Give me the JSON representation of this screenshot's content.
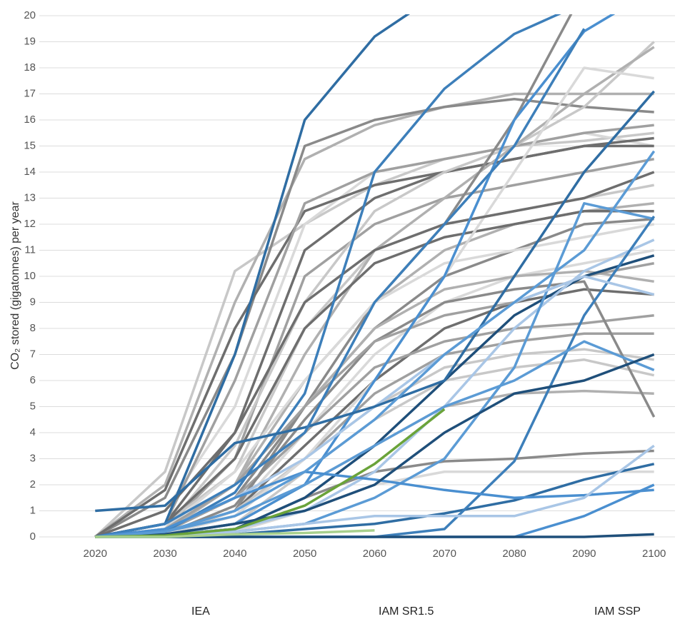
{
  "chart_data": {
    "type": "line",
    "y_label": "CO₂ stored (gigatonnes) per year",
    "x": [
      2020,
      2030,
      2040,
      2050,
      2060,
      2070,
      2080,
      2090,
      2100
    ],
    "xlim": [
      2012,
      2103
    ],
    "xticks": [
      2020,
      2030,
      2040,
      2050,
      2060,
      2070,
      2080,
      2090,
      2100
    ],
    "ylim": [
      0,
      20
    ],
    "yticks": [
      0,
      1,
      2,
      3,
      4,
      5,
      6,
      7,
      8,
      9,
      10,
      11,
      12,
      13,
      14,
      15,
      16,
      17,
      18,
      19,
      20
    ],
    "grid": true,
    "groups": [
      {
        "name": "IAM SR1.5",
        "colors": [
          "#c8c8c8",
          "#b0b0b0",
          "#8a8a8a",
          "#d9d9d9",
          "#6e6e6e",
          "#a0a0a0"
        ],
        "legend_colors": [
          "#9a9a9a",
          "#1a1a1a"
        ],
        "lines": [
          [
            0,
            2.5,
            10.2,
            12,
            13.5,
            14.5,
            15,
            15.2,
            15.5
          ],
          [
            0,
            2,
            9,
            14.5,
            15.8,
            16.5,
            17,
            17,
            17
          ],
          [
            0,
            1.5,
            7,
            15,
            16,
            16.5,
            16.8,
            16.5,
            16.3
          ],
          [
            0,
            1,
            5,
            12,
            14,
            14.5,
            15,
            15.5,
            15
          ],
          [
            0,
            0.5,
            4,
            11,
            13,
            14,
            14.5,
            15,
            15.3
          ],
          [
            0,
            0.3,
            3,
            10,
            12,
            13,
            13.5,
            14,
            14.5
          ],
          [
            0,
            0.5,
            2.5,
            8,
            11,
            12,
            12.5,
            13,
            13.5
          ],
          [
            0,
            0.2,
            2,
            6,
            9,
            11,
            12,
            12.5,
            12.8
          ],
          [
            0,
            0.2,
            1.5,
            5,
            8,
            10,
            11,
            12,
            12.2
          ],
          [
            0,
            0.1,
            1,
            4,
            7,
            9,
            10,
            10.5,
            11
          ],
          [
            0,
            0.1,
            1,
            3.5,
            6,
            8,
            9,
            9.5,
            9.3
          ],
          [
            0,
            0.1,
            0.8,
            3,
            5.5,
            7,
            7.5,
            7.8,
            7.8
          ],
          [
            0,
            0.1,
            0.5,
            2.5,
            4.5,
            6,
            6.5,
            6.8,
            6.2
          ],
          [
            0,
            0.1,
            0.5,
            2,
            3.5,
            5,
            5.5,
            5.6,
            5.5
          ],
          [
            0,
            0.1,
            0.3,
            1.5,
            2.5,
            2.9,
            3,
            3.2,
            3.3
          ],
          [
            0,
            0,
            0.2,
            1,
            2,
            2.5,
            2.5,
            2.5,
            2.5
          ],
          [
            0,
            1.8,
            8,
            12.5,
            13.5,
            14,
            14.5,
            15,
            15
          ],
          [
            0,
            0.5,
            6,
            12.8,
            14,
            14.5,
            15,
            15.5,
            15.8
          ],
          [
            0,
            0.3,
            3.5,
            9,
            12.5,
            14,
            15,
            16.5,
            19
          ],
          [
            0,
            0.2,
            2,
            7,
            11,
            13,
            15,
            17,
            18.8
          ],
          [
            0,
            0.1,
            1,
            5,
            9,
            12,
            16,
            21,
            22
          ],
          [
            0,
            0.3,
            2.5,
            6,
            9,
            10.5,
            11,
            11.5,
            12
          ],
          [
            0,
            0.5,
            3,
            8,
            10.5,
            11.5,
            12,
            12.5,
            12.5
          ],
          [
            0,
            0.2,
            1.5,
            4,
            6.5,
            7.5,
            8,
            8.2,
            8.5
          ],
          [
            0,
            0.1,
            1,
            3,
            5,
            6.5,
            7,
            7.2,
            6.8
          ],
          [
            0,
            0.2,
            2,
            5,
            8,
            9.5,
            10,
            10.2,
            9.8
          ],
          [
            0,
            0.1,
            1.2,
            4.5,
            7.5,
            9,
            9.5,
            9.8,
            4.6
          ],
          [
            0,
            0.1,
            0.8,
            3,
            6,
            10,
            14,
            18,
            17.6
          ],
          [
            0,
            1,
            4,
            9,
            11,
            12,
            12.5,
            13,
            14
          ],
          [
            0,
            0.3,
            2,
            5,
            7.5,
            8.5,
            9,
            10,
            10.5
          ]
        ]
      },
      {
        "name": "IAM SSP",
        "colors": [
          "#2f6da3",
          "#3d7fba",
          "#4a8fd0",
          "#1f4f7a",
          "#a9c6e6",
          "#5b9bd5"
        ],
        "legend_colors": [
          "#c5dbf0",
          "#2f7ac0"
        ],
        "lines": [
          [
            0,
            0.5,
            7,
            16,
            19.2,
            21,
            null,
            null,
            null
          ],
          [
            0,
            0.2,
            1.7,
            5.5,
            14,
            17.2,
            19.3,
            20.5,
            null
          ],
          [
            0,
            0.1,
            0.5,
            2,
            6,
            10,
            16,
            19.4,
            21
          ],
          [
            0,
            0.1,
            0.3,
            1.5,
            3.5,
            6,
            8.5,
            10,
            10.8
          ],
          [
            0,
            0.1,
            0.3,
            1,
            2.5,
            5,
            8,
            10.2,
            11.4
          ],
          [
            0,
            0.1,
            0.2,
            0.5,
            1.5,
            3,
            6.5,
            12.8,
            12.2
          ],
          [
            0,
            0,
            0.1,
            0.3,
            0.5,
            0.9,
            1.4,
            2.2,
            2.8
          ],
          [
            0,
            0,
            0,
            0,
            0,
            0.3,
            2.9,
            8.5,
            12.3
          ],
          [
            0,
            0,
            0,
            0,
            0,
            0,
            0,
            0.8,
            2
          ],
          [
            0,
            0,
            0,
            0,
            0,
            0,
            0,
            0,
            0.1
          ],
          [
            0,
            0.3,
            1.5,
            3,
            5,
            7,
            9,
            10,
            9.3
          ],
          [
            0,
            0.2,
            0.8,
            2,
            3.5,
            5,
            6,
            7.5,
            6.4
          ],
          [
            1,
            1.2,
            3.6,
            4.2,
            5,
            6,
            10,
            14,
            17.1
          ],
          [
            0,
            0.5,
            2,
            4,
            9,
            12,
            15,
            19.5,
            null
          ],
          [
            0,
            0.3,
            1.5,
            2.5,
            2.2,
            1.8,
            1.5,
            1.6,
            1.8
          ],
          [
            0,
            0.1,
            0.5,
            1,
            2,
            4,
            5.5,
            6,
            7
          ],
          [
            0,
            0,
            0.2,
            0.5,
            0.8,
            0.8,
            0.8,
            1.5,
            3.5
          ],
          [
            0,
            0.2,
            1,
            2.5,
            4.5,
            7,
            9,
            11,
            14.8
          ]
        ]
      },
      {
        "name": "IEA",
        "colors": [
          "#6aa33a",
          "#a8d08d"
        ],
        "legend_colors": [
          "#9ccc3c",
          "#2ea84a"
        ],
        "lines": [
          [
            0,
            0.05,
            0.3,
            1.2,
            2.8,
            4.9,
            null,
            null,
            null
          ],
          [
            0,
            0,
            0.1,
            0.15,
            0.25,
            null,
            null,
            null,
            null
          ]
        ]
      }
    ]
  }
}
